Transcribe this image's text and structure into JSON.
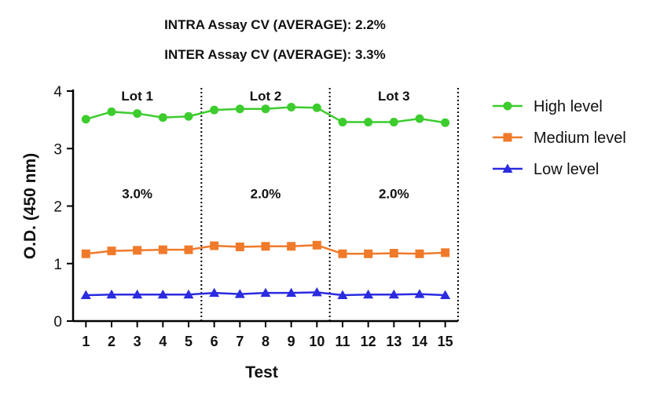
{
  "header": {
    "intra_cv": "INTRA Assay CV (AVERAGE): 2.2%",
    "inter_cv": "INTER Assay CV (AVERAGE): 3.3%"
  },
  "chart_data": {
    "type": "line",
    "xlabel": "Test",
    "ylabel": "O.D. (450 nm)",
    "x": [
      1,
      2,
      3,
      4,
      5,
      6,
      7,
      8,
      9,
      10,
      11,
      12,
      13,
      14,
      15
    ],
    "xlim": [
      0.5,
      15.5
    ],
    "ylim": [
      0,
      4
    ],
    "yticks": [
      0,
      1,
      2,
      3,
      4
    ],
    "grid": false,
    "legend_position": "right",
    "series": [
      {
        "name": "High level",
        "marker": "circle",
        "color": "#3DCC2E",
        "values": [
          3.51,
          3.64,
          3.61,
          3.54,
          3.56,
          3.67,
          3.69,
          3.69,
          3.72,
          3.71,
          3.46,
          3.46,
          3.46,
          3.52,
          3.45
        ]
      },
      {
        "name": "Medium level",
        "marker": "square",
        "color": "#F07A2A",
        "values": [
          1.17,
          1.22,
          1.23,
          1.24,
          1.24,
          1.31,
          1.29,
          1.3,
          1.3,
          1.32,
          1.17,
          1.17,
          1.18,
          1.17,
          1.19
        ]
      },
      {
        "name": "Low level",
        "marker": "triangle",
        "color": "#2B2BE0",
        "values": [
          0.45,
          0.46,
          0.46,
          0.46,
          0.46,
          0.49,
          0.47,
          0.49,
          0.49,
          0.5,
          0.45,
          0.46,
          0.46,
          0.47,
          0.45
        ]
      }
    ],
    "dividers_x": [
      5.5,
      10.5,
      15.5
    ],
    "lots": [
      {
        "label": "Lot 1",
        "cv": "3.0%",
        "center_x": 3
      },
      {
        "label": "Lot 2",
        "cv": "2.0%",
        "center_x": 8
      },
      {
        "label": "Lot 3",
        "cv": "2.0%",
        "center_x": 13
      }
    ]
  }
}
